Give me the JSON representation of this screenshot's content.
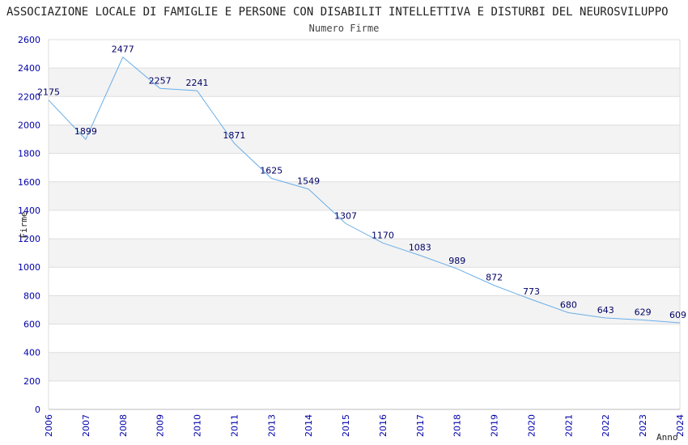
{
  "chart_data": {
    "type": "line",
    "title": "ASSOCIAZIONE LOCALE DI FAMIGLIE E PERSONE CON DISABILIT INTELLETTIVA E DISTURBI DEL NEUROSVILUPPO",
    "subtitle": "Numero Firme",
    "xlabel": "Anno",
    "ylabel": "Firme",
    "ylim": [
      0,
      2600
    ],
    "yticks": [
      0,
      200,
      400,
      600,
      800,
      1000,
      1200,
      1400,
      1600,
      1800,
      2000,
      2200,
      2400,
      2600
    ],
    "grid": "horizontal bands",
    "categories": [
      "2006",
      "2007",
      "2008",
      "2009",
      "2010",
      "2011",
      "2013",
      "2014",
      "2015",
      "2016",
      "2017",
      "2018",
      "2019",
      "2020",
      "2021",
      "2022",
      "2023",
      "2024"
    ],
    "series": [
      {
        "values": [
          2175,
          1899,
          2477,
          2257,
          2241,
          1871,
          1625,
          1549,
          1307,
          1170,
          1083,
          989,
          872,
          773,
          680,
          643,
          629,
          609
        ]
      }
    ],
    "colors": {
      "line": "#6aaee8",
      "tick": "#0000aa",
      "label": "#000066",
      "band": "#f3f3f3",
      "grid": "#dddddd"
    }
  }
}
